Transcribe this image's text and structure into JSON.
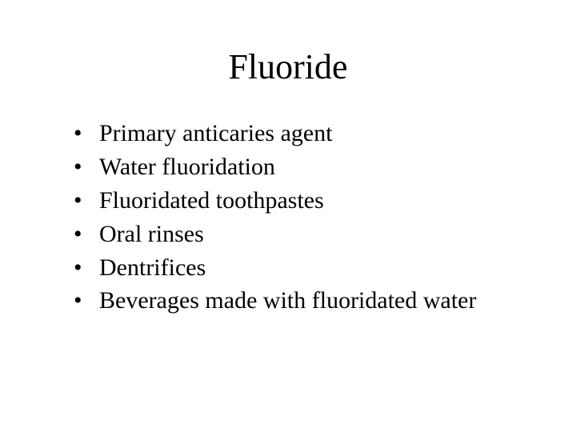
{
  "slide": {
    "title": "Fluoride",
    "bullets": [
      "Primary anticaries agent",
      "Water fluoridation",
      "Fluoridated toothpastes",
      "Oral rinses",
      "Dentrifices",
      "Beverages made with fluoridated water"
    ],
    "title_fontsize": 44,
    "bullet_fontsize": 30,
    "background_color": "#ffffff",
    "text_color": "#000000",
    "font_family": "Times New Roman"
  }
}
